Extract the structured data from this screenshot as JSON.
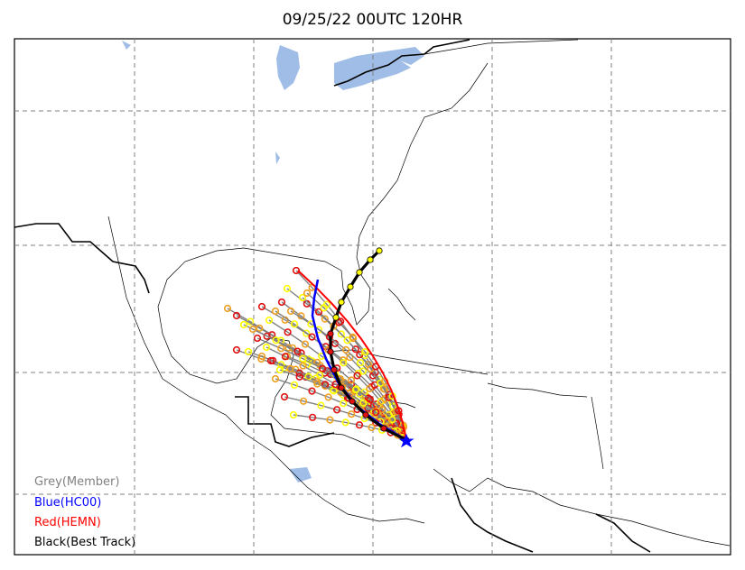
{
  "title": "09/25/22 00UTC 120HR",
  "legend": [
    {
      "label": "Grey(Member)",
      "color": "#808080"
    },
    {
      "label": "Blue(HC00)",
      "color": "#0000ff"
    },
    {
      "label": "Red(HEMN)",
      "color": "#ff0000"
    },
    {
      "label": "Black(Best Track)",
      "color": "#000000"
    }
  ],
  "colors": {
    "water": "#9fbde6",
    "grid": "#808080",
    "border": "#000000",
    "ensemble_marker_yellow": "#ffff00",
    "ensemble_marker_orange": "#f0a020"
  }
}
